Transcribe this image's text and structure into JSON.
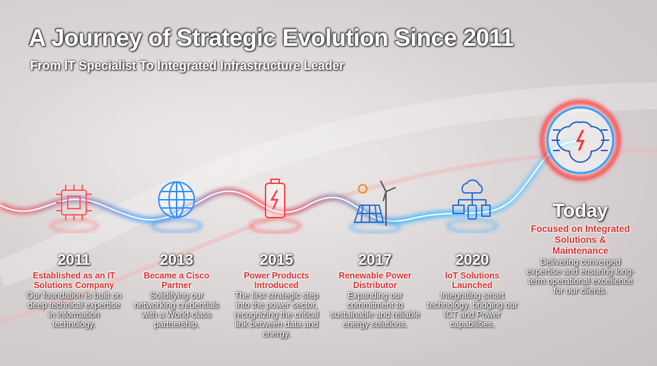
{
  "header": {
    "title": "A Journey of Strategic Evolution Since 2011",
    "subtitle": "From IT Specialist To Integrated Infrastructure Leader"
  },
  "milestones": [
    {
      "year": "2011",
      "heading": "Established as an IT Solutions Company",
      "description": "Our foundation is built on deep technical expertise in information technology."
    },
    {
      "year": "2013",
      "heading": "Became a Cisco Partner",
      "description": "Solidifying our networking credentials with a World-class partnership."
    },
    {
      "year": "2015",
      "heading": "Power Products Introduced",
      "description": "The first strategic step into the power sector, recognizing the critical link between data and energy."
    },
    {
      "year": "2017",
      "heading": "Renewable Power Distributor",
      "description": "Expanding our commitment to sustainable and reliable energy solutions."
    },
    {
      "year": "2020",
      "heading": "IoT Solutions Launched",
      "description": "Integrating smart technology, bridging our ICT and Power capabilities."
    },
    {
      "year": "Today",
      "heading": "Focused on Integrated Solutions & Maintenance",
      "description": "Delivering converged expertise and ensuring long-term operational excellence for our clients."
    }
  ]
}
